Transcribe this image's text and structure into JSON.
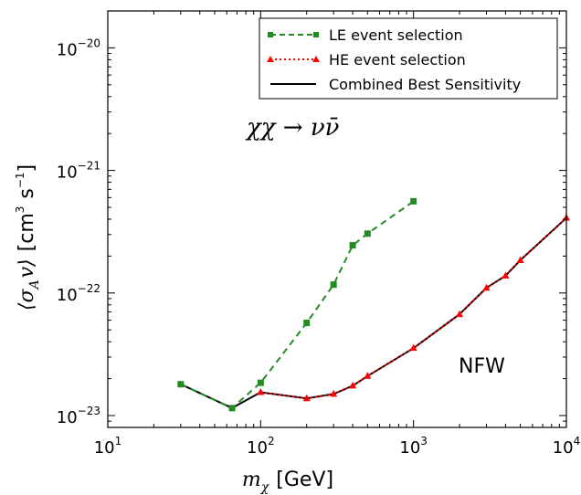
{
  "chart_data": {
    "type": "line",
    "x_scale": "log",
    "y_scale": "log",
    "xlim": [
      10,
      10000
    ],
    "ylim": [
      8e-24,
      2e-20
    ],
    "x_ticks": [
      {
        "value": 10,
        "base": "10",
        "exp": "1"
      },
      {
        "value": 100,
        "base": "10",
        "exp": "2"
      },
      {
        "value": 1000,
        "base": "10",
        "exp": "3"
      },
      {
        "value": 10000,
        "base": "10",
        "exp": "4"
      }
    ],
    "y_ticks": [
      {
        "value": 1e-23,
        "base": "10",
        "exp": "−23"
      },
      {
        "value": 1e-22,
        "base": "10",
        "exp": "−22"
      },
      {
        "value": 1e-21,
        "base": "10",
        "exp": "−21"
      },
      {
        "value": 1e-20,
        "base": "10",
        "exp": "−20"
      }
    ],
    "xlabel": {
      "sym": "m",
      "sub": "χ",
      "unit": "[GeV]"
    },
    "ylabel": {
      "sym_open": "⟨",
      "sym": "σ",
      "sub": "A",
      "v": "v",
      "sym_close": "⟩",
      "unit_a": "[cm",
      "unit_a_exp": "3",
      "unit_b": "s",
      "unit_b_exp": "−1",
      "unit_c": "]"
    },
    "annotations": {
      "process": "χχ → νν̄",
      "profile": "NFW"
    },
    "legend": {
      "placement": "top-right",
      "entries": [
        "LE event selection",
        "HE event selection",
        "Combined Best Sensitivity"
      ]
    },
    "series": [
      {
        "name": "LE event selection",
        "color": "#228b22",
        "style": "dashed",
        "marker": "square",
        "x": [
          30,
          65,
          100,
          200,
          300,
          400,
          500,
          1000
        ],
        "y": [
          1.8e-23,
          1.15e-23,
          1.85e-23,
          5.7e-23,
          1.17e-22,
          2.45e-22,
          3.05e-22,
          5.6e-22
        ]
      },
      {
        "name": "HE event selection",
        "color": "#ff0000",
        "style": "dotted",
        "marker": "triangle",
        "x": [
          100,
          200,
          300,
          400,
          500,
          1000,
          2000,
          3000,
          4000,
          5000,
          10000
        ],
        "y": [
          1.55e-23,
          1.38e-23,
          1.5e-23,
          1.75e-23,
          2.1e-23,
          3.55e-23,
          6.7e-23,
          1.1e-22,
          1.38e-22,
          1.85e-22,
          4.1e-22
        ]
      },
      {
        "name": "Combined Best Sensitivity",
        "color": "#000000",
        "style": "solid",
        "marker": "none",
        "x": [
          30,
          65,
          100,
          200,
          300,
          400,
          500,
          1000,
          2000,
          3000,
          4000,
          5000,
          10000
        ],
        "y": [
          1.8e-23,
          1.15e-23,
          1.55e-23,
          1.38e-23,
          1.5e-23,
          1.75e-23,
          2.1e-23,
          3.55e-23,
          6.7e-23,
          1.1e-22,
          1.38e-22,
          1.85e-22,
          4.1e-22
        ]
      }
    ]
  }
}
